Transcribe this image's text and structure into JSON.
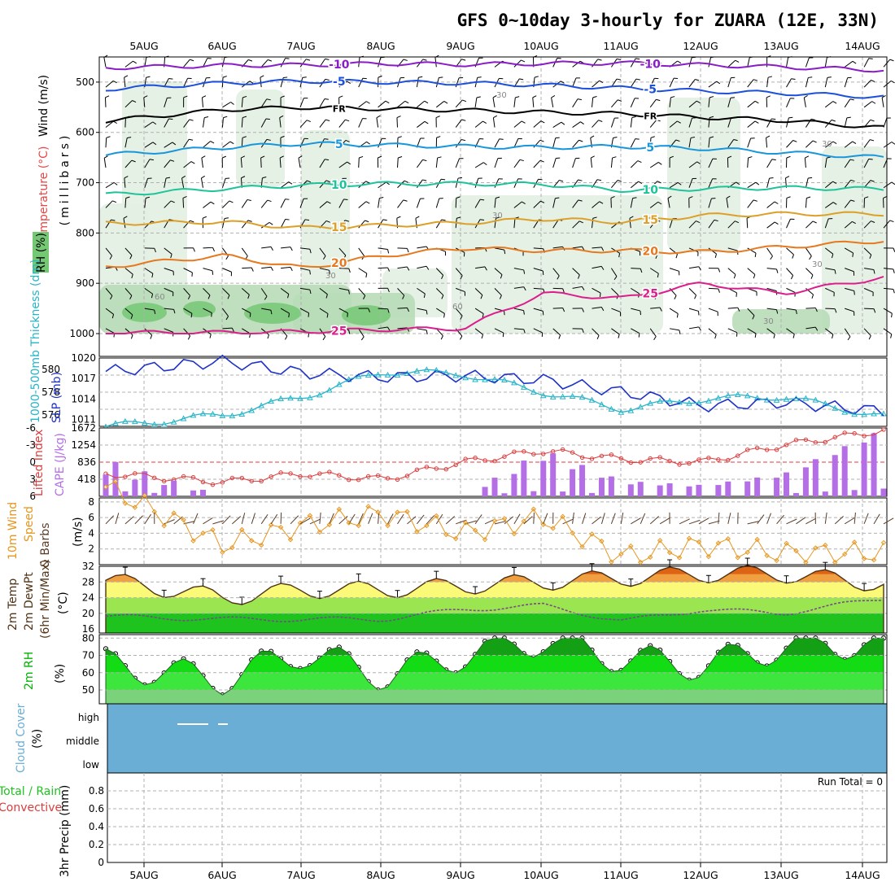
{
  "title": "GFS 0~10day 3-hourly for ZUARA (12E, 33N)",
  "dates": [
    "5AUG",
    "6AUG",
    "7AUG",
    "8AUG",
    "9AUG",
    "10AUG",
    "11AUG",
    "12AUG",
    "13AUG",
    "14AUG"
  ],
  "colors": {
    "rh_light": "#e3efe3",
    "rh_mid": "#b8dcb8",
    "rh_dark": "#74c874",
    "iso_m10": "#8a1cc8",
    "iso_m5": "#1c50dc",
    "iso_fr": "#000000",
    "iso_p5": "#1896dc",
    "iso_p10": "#1ec39b",
    "iso_p15": "#dca028",
    "iso_p20": "#e6781e",
    "iso_p25": "#dc1e8c",
    "slp": "#1e32c8",
    "thickness": "#28b4c8",
    "lifted": "#dc3c3c",
    "cape": "#b46ee6",
    "wind_speed": "#e6961e",
    "barb": "#5a3c28",
    "cloud": "#6aaed6",
    "rh2m": "#00dc00"
  },
  "panels": {
    "upper": {
      "axis_label": "(millibars)",
      "legend_wind": "Wind (m/s)",
      "legend_temp": "Temperature (°C)",
      "legend_rh": "RH (%)",
      "ticks": [
        "500",
        "600",
        "700",
        "800",
        "900",
        "1000"
      ],
      "contour_labels": {
        "m10": "-10",
        "m5": "-5",
        "fr": "FR",
        "p5": "5",
        "p10": "10",
        "p15": "15",
        "p20": "20",
        "p25": "25",
        "rh30": "30",
        "rh60": "60"
      }
    },
    "slp": {
      "label_thick": "1000-500mb Thickness (dm)",
      "label_slp": "SLP (mb)",
      "left_ticks": [
        "580",
        "578",
        "576"
      ],
      "right_ticks": [
        "1020",
        "1017",
        "1014",
        "1011"
      ]
    },
    "li": {
      "label_li": "Lifted Index",
      "label_cape": "CAPE (J/kg)",
      "left_ticks": [
        "-6",
        "-3",
        "0",
        "3",
        "6"
      ],
      "right_ticks": [
        "1672",
        "1254",
        "836",
        "418"
      ]
    },
    "wind": {
      "label_a": "10m Wind",
      "label_b": "Speed",
      "label_c": "& Barbs",
      "label_unit": "(m/s)",
      "ticks": [
        "8",
        "6",
        "4",
        "2"
      ]
    },
    "temp": {
      "label_a": "2m Temp",
      "label_b": "2m DewPt",
      "label_c": "(6hr Min/Max)",
      "label_unit": "(°C)",
      "ticks": [
        "32",
        "28",
        "24",
        "20",
        "16"
      ]
    },
    "rh": {
      "label_a": "2m RH",
      "label_unit": "(%)",
      "ticks": [
        "80",
        "70",
        "60",
        "50"
      ]
    },
    "cloud": {
      "label_a": "Cloud Cover",
      "label_unit": "(%)",
      "ticks": [
        "high",
        "middle",
        "low"
      ]
    },
    "precip": {
      "label_a": "Total / Rain",
      "label_b": "Convective",
      "label_c": "3hr Precip (mm)",
      "ticks": [
        "0.8",
        "0.6",
        "0.4",
        "0.2",
        "0"
      ],
      "run_total": "Run Total = 0"
    }
  },
  "chart_data": [
    {
      "type": "line",
      "title": "GFS 0~10day 3-hourly for ZUARA (12E, 33N)",
      "x": [
        "5AUG",
        "6AUG",
        "7AUG",
        "8AUG",
        "9AUG",
        "10AUG",
        "11AUG",
        "12AUG",
        "13AUG",
        "14AUG"
      ],
      "ylabel": "(millibars)",
      "ylim": [
        450,
        1000
      ],
      "series": [
        {
          "name": "-10",
          "values": [
            470,
            467,
            466,
            463,
            465,
            463,
            462,
            466,
            470,
            475
          ]
        },
        {
          "name": "-5",
          "values": [
            510,
            502,
            498,
            500,
            502,
            506,
            512,
            518,
            522,
            528
          ]
        },
        {
          "name": "FR",
          "values": [
            570,
            555,
            550,
            553,
            556,
            560,
            563,
            570,
            576,
            588
          ]
        },
        {
          "name": "5",
          "values": [
            640,
            630,
            622,
            625,
            628,
            630,
            628,
            632,
            640,
            648
          ]
        },
        {
          "name": "10",
          "values": [
            720,
            712,
            705,
            702,
            702,
            703,
            715,
            712,
            710,
            712
          ]
        },
        {
          "name": "15",
          "values": [
            780,
            778,
            790,
            785,
            780,
            772,
            778,
            765,
            762,
            762
          ]
        },
        {
          "name": "20",
          "values": [
            860,
            845,
            870,
            845,
            830,
            835,
            835,
            838,
            828,
            818
          ]
        },
        {
          "name": "25",
          "values": [
            998,
            998,
            996,
            992,
            990,
            920,
            930,
            900,
            920,
            895
          ]
        }
      ]
    },
    {
      "type": "line",
      "x": [
        "5AUG",
        "6AUG",
        "7AUG",
        "8AUG",
        "9AUG",
        "10AUG",
        "11AUG",
        "12AUG",
        "13AUG",
        "14AUG"
      ],
      "series": [
        {
          "name": "SLP (mb)",
          "values": [
            1018.5,
            1019.5,
            1017.8,
            1017.2,
            1017.4,
            1016.8,
            1015.0,
            1013.0,
            1013.5,
            1012.5
          ]
        },
        {
          "name": "1000-500mb Thickness (dm)",
          "values": [
            575.3,
            576.0,
            577.6,
            579.8,
            579.6,
            578.0,
            576.5,
            577.4,
            577.6,
            576.2
          ]
        }
      ],
      "ylim_left": [
        575,
        581
      ],
      "ylim_right": [
        1010,
        1020
      ]
    },
    {
      "type": "bar",
      "x": [
        "5AUG",
        "6AUG",
        "7AUG",
        "8AUG",
        "9AUG",
        "10AUG",
        "11AUG",
        "12AUG",
        "13AUG",
        "14AUG"
      ],
      "series": [
        {
          "name": "Lifted Index",
          "values": [
            2.5,
            3.5,
            2.0,
            3.0,
            0.0,
            -2.0,
            -0.5,
            0.0,
            -3.0,
            -5.0
          ]
        },
        {
          "name": "CAPE (J/kg)",
          "values": [
            600,
            0,
            0,
            0,
            0,
            1200,
            400,
            300,
            600,
            1600
          ]
        }
      ],
      "ylim_left": [
        6,
        -6
      ],
      "ylim_right": [
        0,
        1672
      ]
    },
    {
      "type": "line",
      "x": [
        "5AUG",
        "6AUG",
        "7AUG",
        "8AUG",
        "9AUG",
        "10AUG",
        "11AUG",
        "12AUG",
        "13AUG",
        "14AUG"
      ],
      "series": [
        {
          "name": "Speed",
          "values": [
            7.5,
            2.5,
            5.0,
            6.5,
            4.0,
            6.0,
            1.0,
            2.5,
            1.5,
            1.5
          ]
        }
      ],
      "ylim": [
        0,
        8.5
      ]
    },
    {
      "type": "area",
      "x": [
        "5AUG",
        "6AUG",
        "7AUG",
        "8AUG",
        "9AUG",
        "10AUG",
        "11AUG",
        "12AUG",
        "13AUG",
        "14AUG"
      ],
      "series": [
        {
          "name": "2m Temp",
          "values": [
            27,
            24,
            26,
            26,
            27,
            28,
            29,
            30,
            30,
            28
          ]
        },
        {
          "name": "2m DewPt",
          "values": [
            19,
            18.5,
            18.5,
            18.5,
            21,
            22,
            18,
            21,
            20,
            23
          ]
        }
      ],
      "ylim": [
        15,
        32
      ]
    },
    {
      "type": "area",
      "x": [
        "5AUG",
        "6AUG",
        "7AUG",
        "8AUG",
        "9AUG",
        "10AUG",
        "11AUG",
        "12AUG",
        "13AUG",
        "14AUG"
      ],
      "series": [
        {
          "name": "2m RH",
          "values": [
            62,
            56,
            72,
            58,
            70,
            79,
            68,
            64,
            75,
            77
          ]
        }
      ],
      "ylim": [
        42,
        82
      ]
    },
    {
      "type": "bar",
      "x": [
        "5AUG",
        "6AUG",
        "7AUG",
        "8AUG",
        "9AUG",
        "10AUG",
        "11AUG",
        "12AUG",
        "13AUG",
        "14AUG"
      ],
      "series": [
        {
          "name": "3hr Precip (mm)",
          "values": [
            0,
            0,
            0,
            0,
            0,
            0,
            0,
            0,
            0,
            0
          ]
        }
      ],
      "ylim": [
        0,
        1
      ]
    }
  ]
}
